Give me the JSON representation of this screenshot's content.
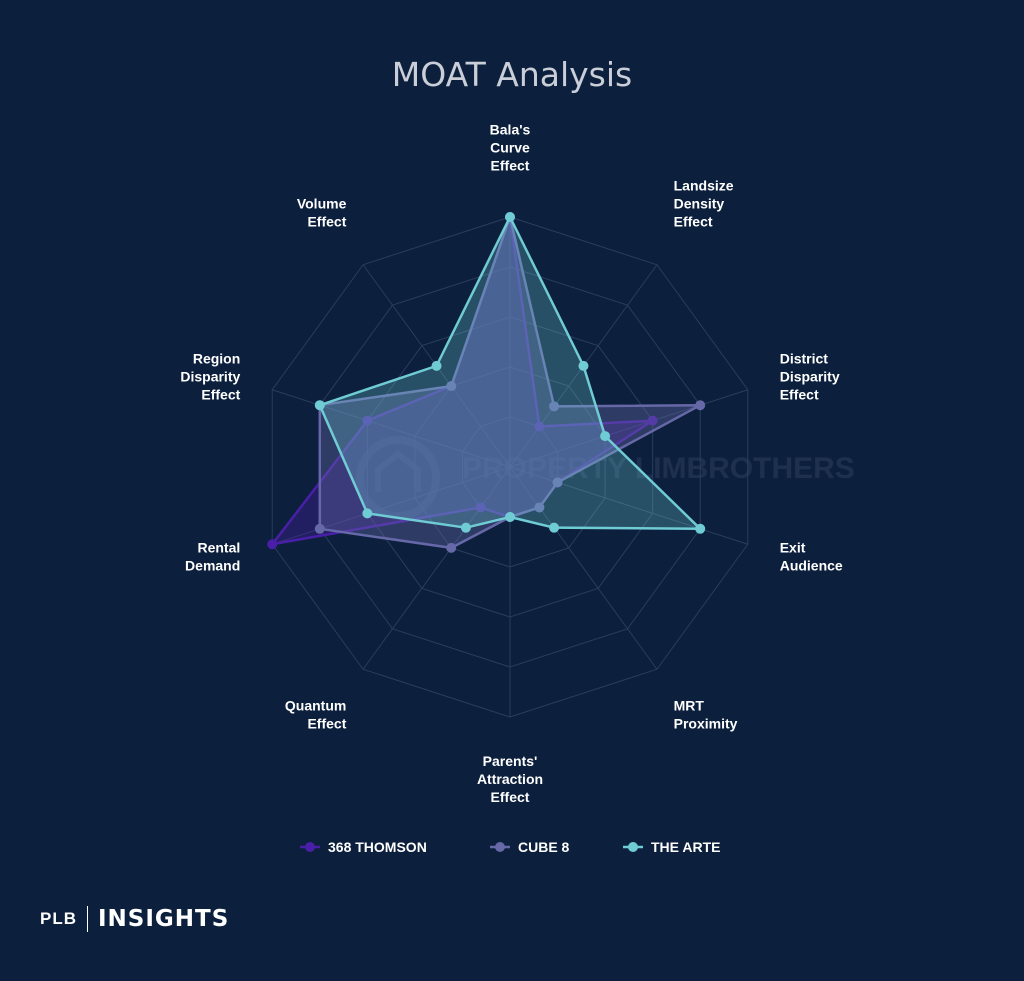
{
  "chart_data": {
    "type": "radar",
    "title": "MOAT Analysis",
    "axes": [
      [
        "Bala's",
        "Curve",
        "Effect"
      ],
      [
        "Landsize",
        "Density",
        "Effect"
      ],
      [
        "District",
        "Disparity",
        "Effect"
      ],
      [
        "Exit",
        "Audience"
      ],
      [
        "MRT",
        "Proximity"
      ],
      [
        "Parents'",
        "Attraction",
        "Effect"
      ],
      [
        "Quantum",
        "Effect"
      ],
      [
        "Rental",
        "Demand"
      ],
      [
        "Region",
        "Disparity",
        "Effect"
      ],
      [
        "Volume",
        "Effect"
      ]
    ],
    "rmax": 5,
    "grid_levels": 5,
    "grid": true,
    "legend_placement": "bottom",
    "series": [
      {
        "name": "368 THOMSON",
        "color": "#4a1fa8",
        "values": [
          5,
          1,
          3,
          1,
          1,
          1,
          1,
          5,
          3,
          2
        ]
      },
      {
        "name": "CUBE 8",
        "color": "#6668a8",
        "values": [
          5,
          1.5,
          4,
          1,
          1,
          1,
          2,
          4,
          4,
          2
        ]
      },
      {
        "name": "THE ARTE",
        "color": "#70ccd4",
        "values": [
          5,
          2.5,
          2,
          4,
          1.5,
          1,
          1.5,
          3,
          4,
          2.5
        ]
      }
    ]
  },
  "brand": {
    "left": "PLB",
    "right": "INSIGHTS",
    "watermark": "PROPERTY LIMBROTHERS"
  }
}
